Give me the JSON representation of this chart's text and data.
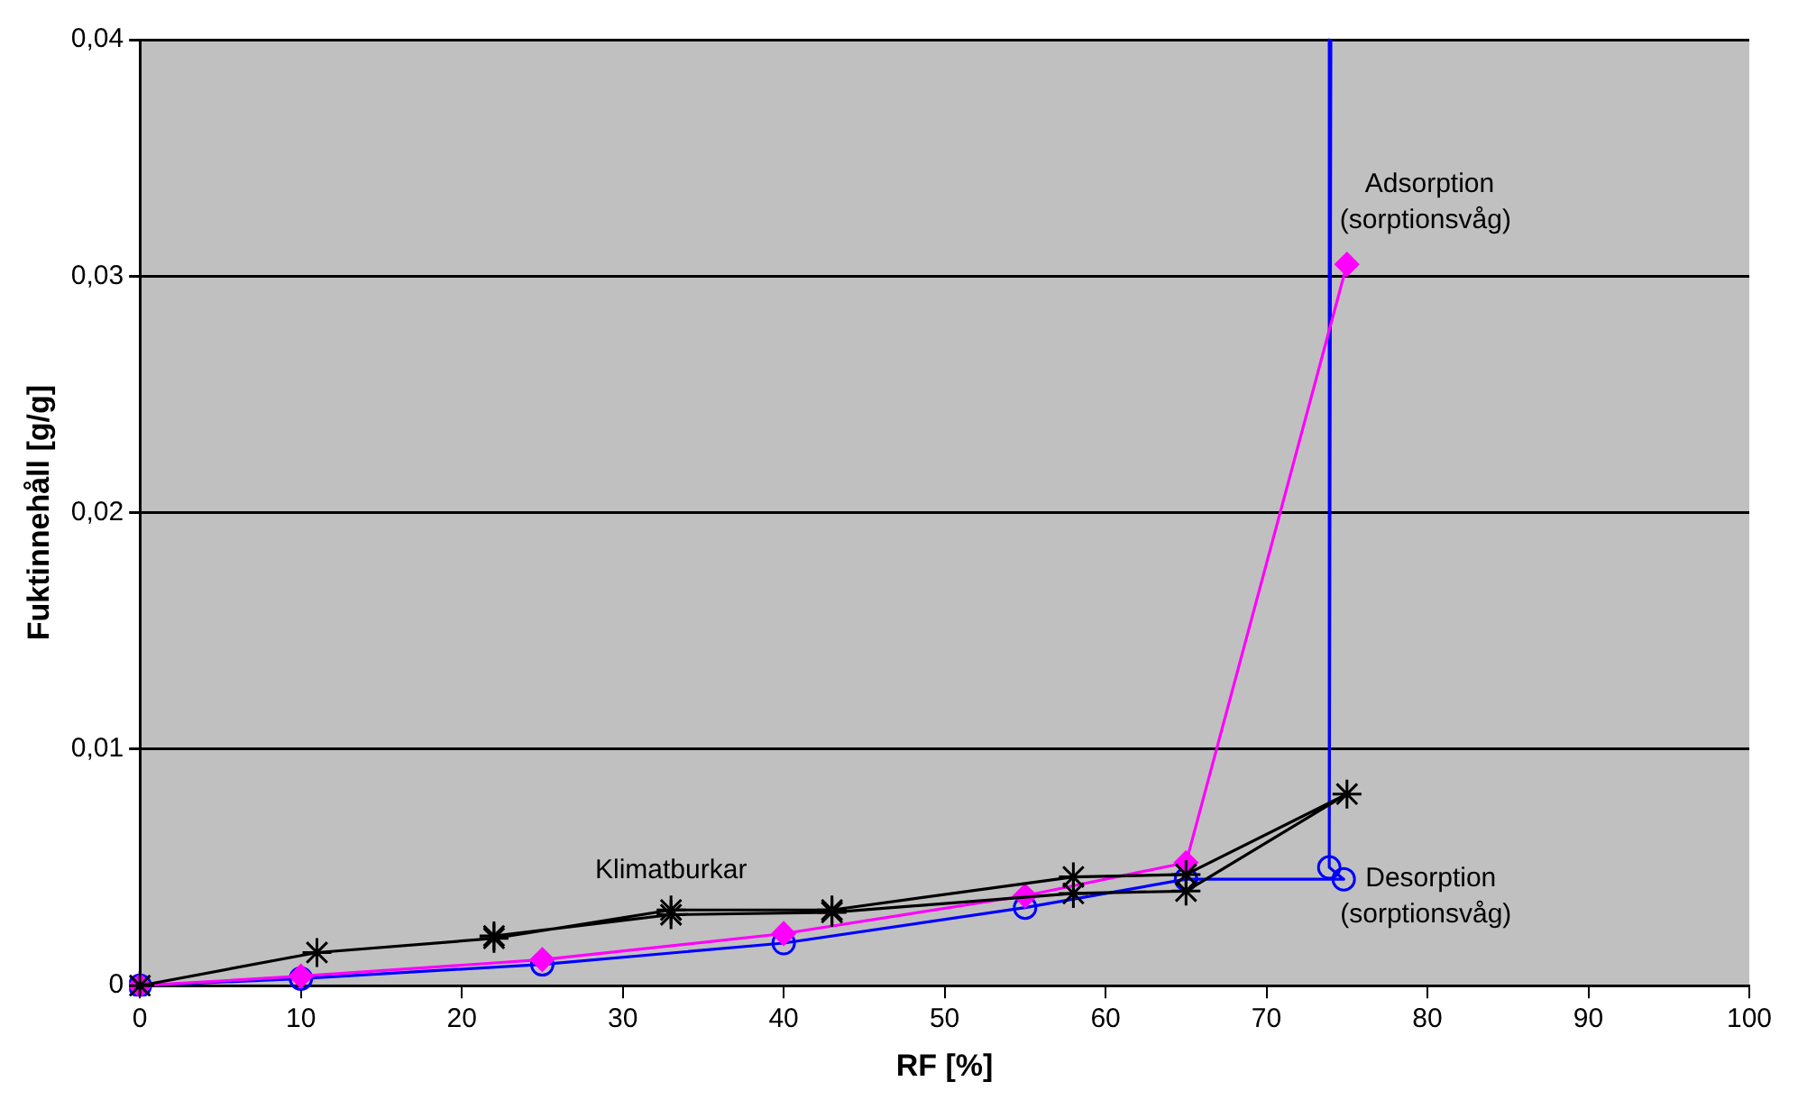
{
  "chart_data": {
    "type": "line",
    "xlabel": "RF [%]",
    "ylabel": "Fuktinnehåll [g/g]",
    "xlim": [
      0,
      100
    ],
    "xticks": [
      0,
      10,
      20,
      30,
      40,
      50,
      60,
      70,
      80,
      90,
      100
    ],
    "ylim": [
      0,
      0.04
    ],
    "yticks": [
      0,
      {
        "value": 0.01,
        "label": "0,01"
      },
      {
        "value": 0.02,
        "label": "0,02"
      },
      {
        "value": 0.03,
        "label": "0,03"
      },
      {
        "value": 0.04,
        "label": "0,04"
      }
    ],
    "grid": "y",
    "legend": false,
    "line_style": "solid",
    "series": [
      {
        "name": "Klimatburkar",
        "color": "#000000",
        "marker": "cross",
        "x": [
          0,
          11,
          22,
          33,
          43,
          58,
          65,
          75,
          65,
          58,
          43,
          33,
          22
        ],
        "values": [
          0,
          0.0014,
          0.002,
          0.0032,
          0.0032,
          0.0046,
          0.0047,
          0.0081,
          0.004,
          0.0039,
          0.0031,
          0.003,
          0.0021
        ]
      },
      {
        "name": "Adsorption (sorptionsvåg)",
        "color": "#ff00ff",
        "marker": "diamond",
        "x": [
          0,
          10,
          25,
          40,
          55,
          65,
          75
        ],
        "values": [
          0,
          0.0004,
          0.0011,
          0.0022,
          0.0038,
          0.0052,
          0.0305
        ]
      },
      {
        "name": "Desorption (sorptionsvåg)",
        "color": "#0000ff",
        "marker": "circle",
        "x": [
          74,
          73.9,
          74.8,
          65,
          55,
          40,
          25,
          10,
          0
        ],
        "values": [
          0.04,
          0.005,
          0.0045,
          0.0045,
          0.0033,
          0.0018,
          0.0009,
          0.0003,
          0
        ]
      }
    ]
  }
}
